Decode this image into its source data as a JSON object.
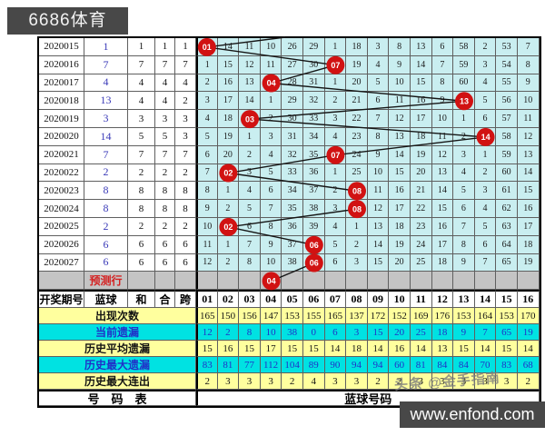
{
  "logo": {
    "text": "6686体育"
  },
  "watermarks": {
    "toutiao": "头条 @金手指南",
    "enfond": "www.enfond.com"
  },
  "colors": {
    "matrix_bg": "#c9eef0",
    "row_yellow": "#ffff9e",
    "row_cyan": "#00e2e2",
    "hit_red": "#d11212",
    "prediction_gray": "#c4c4c4",
    "blue_ball_text": "#3a3ab8",
    "badge_bg": "#484848",
    "trend_line": "#151515"
  },
  "chart_data": {
    "type": "table",
    "header": {
      "period": "开奖期号",
      "blue": "蓝球",
      "sum": "和",
      "combine": "合",
      "span": "跨",
      "numbers": [
        "01",
        "02",
        "03",
        "04",
        "05",
        "06",
        "07",
        "08",
        "09",
        "10",
        "11",
        "12",
        "13",
        "14",
        "15",
        "16"
      ]
    },
    "rows": [
      {
        "period": "2020015",
        "blue": "1",
        "sum": "1",
        "combine": "1",
        "span": "1",
        "hit": 1,
        "miss": [
          "",
          14,
          11,
          10,
          26,
          29,
          1,
          18,
          3,
          8,
          13,
          6,
          58,
          2,
          53,
          7
        ]
      },
      {
        "period": "2020016",
        "blue": "7",
        "sum": "7",
        "combine": "7",
        "span": "7",
        "hit": 7,
        "miss": [
          1,
          15,
          12,
          11,
          27,
          30,
          "",
          19,
          4,
          9,
          14,
          7,
          59,
          3,
          54,
          8
        ]
      },
      {
        "period": "2020017",
        "blue": "4",
        "sum": "4",
        "combine": "4",
        "span": "4",
        "hit": 4,
        "miss": [
          2,
          16,
          13,
          "",
          28,
          31,
          1,
          20,
          5,
          10,
          15,
          8,
          60,
          4,
          55,
          9
        ]
      },
      {
        "period": "2020018",
        "blue": "13",
        "sum": "4",
        "combine": "4",
        "span": "2",
        "hit": 13,
        "miss": [
          3,
          17,
          14,
          1,
          29,
          32,
          2,
          21,
          6,
          11,
          16,
          9,
          "",
          5,
          56,
          10
        ]
      },
      {
        "period": "2020019",
        "blue": "3",
        "sum": "3",
        "combine": "3",
        "span": "3",
        "hit": 3,
        "miss": [
          4,
          18,
          "",
          2,
          30,
          33,
          3,
          22,
          7,
          12,
          17,
          10,
          1,
          6,
          57,
          11
        ]
      },
      {
        "period": "2020020",
        "blue": "14",
        "sum": "5",
        "combine": "5",
        "span": "3",
        "hit": 14,
        "miss": [
          5,
          19,
          1,
          3,
          31,
          34,
          4,
          23,
          8,
          13,
          18,
          11,
          2,
          "",
          58,
          12
        ]
      },
      {
        "period": "2020021",
        "blue": "7",
        "sum": "7",
        "combine": "7",
        "span": "7",
        "hit": 7,
        "miss": [
          6,
          20,
          2,
          4,
          32,
          35,
          "",
          24,
          9,
          14,
          19,
          12,
          3,
          1,
          59,
          13
        ]
      },
      {
        "period": "2020022",
        "blue": "2",
        "sum": "2",
        "combine": "2",
        "span": "2",
        "hit": 2,
        "miss": [
          7,
          "",
          3,
          5,
          33,
          36,
          1,
          25,
          10,
          15,
          20,
          13,
          4,
          2,
          60,
          14
        ]
      },
      {
        "period": "2020023",
        "blue": "8",
        "sum": "8",
        "combine": "8",
        "span": "8",
        "hit": 8,
        "miss": [
          8,
          1,
          4,
          6,
          34,
          37,
          2,
          "",
          11,
          16,
          21,
          14,
          5,
          3,
          61,
          15
        ]
      },
      {
        "period": "2020024",
        "blue": "8",
        "sum": "8",
        "combine": "8",
        "span": "8",
        "hit": 8,
        "miss": [
          9,
          2,
          5,
          7,
          35,
          38,
          3,
          "",
          12,
          17,
          22,
          15,
          6,
          4,
          62,
          16
        ]
      },
      {
        "period": "2020025",
        "blue": "2",
        "sum": "2",
        "combine": "2",
        "span": "2",
        "hit": 2,
        "miss": [
          10,
          "",
          6,
          8,
          36,
          39,
          4,
          1,
          13,
          18,
          23,
          16,
          7,
          5,
          63,
          17
        ]
      },
      {
        "period": "2020026",
        "blue": "6",
        "sum": "6",
        "combine": "6",
        "span": "6",
        "hit": 6,
        "miss": [
          11,
          1,
          7,
          9,
          37,
          "",
          5,
          2,
          14,
          19,
          24,
          17,
          8,
          6,
          64,
          18
        ]
      },
      {
        "period": "2020027",
        "blue": "6",
        "sum": "6",
        "combine": "6",
        "span": "6",
        "hit": 6,
        "miss": [
          12,
          2,
          8,
          10,
          38,
          "",
          6,
          3,
          15,
          20,
          25,
          18,
          9,
          7,
          65,
          19
        ]
      }
    ],
    "prediction": {
      "label": "预测行",
      "hit": 4
    },
    "summary": [
      {
        "label": "出现次数",
        "scheme": "yellow",
        "values": [
          165,
          150,
          156,
          147,
          153,
          155,
          165,
          137,
          172,
          152,
          169,
          176,
          153,
          164,
          153,
          170
        ]
      },
      {
        "label": "当前遗漏",
        "scheme": "cyan",
        "values": [
          12,
          2,
          8,
          10,
          38,
          0,
          6,
          3,
          15,
          20,
          25,
          18,
          9,
          7,
          65,
          19
        ]
      },
      {
        "label": "历史平均遗漏",
        "scheme": "yellow",
        "values": [
          15,
          16,
          15,
          17,
          15,
          15,
          14,
          18,
          14,
          16,
          14,
          13,
          15,
          14,
          15,
          14
        ]
      },
      {
        "label": "历史最大遗漏",
        "scheme": "cyan",
        "values": [
          83,
          81,
          77,
          112,
          104,
          89,
          90,
          94,
          94,
          60,
          81,
          84,
          84,
          70,
          83,
          68
        ]
      },
      {
        "label": "历史最大连出",
        "scheme": "yellow",
        "values": [
          2,
          3,
          3,
          3,
          2,
          4,
          3,
          3,
          2,
          2,
          3,
          3,
          3,
          3,
          3,
          2
        ]
      }
    ],
    "footer": {
      "left": "号　码　表",
      "right": "蓝球号码"
    }
  }
}
